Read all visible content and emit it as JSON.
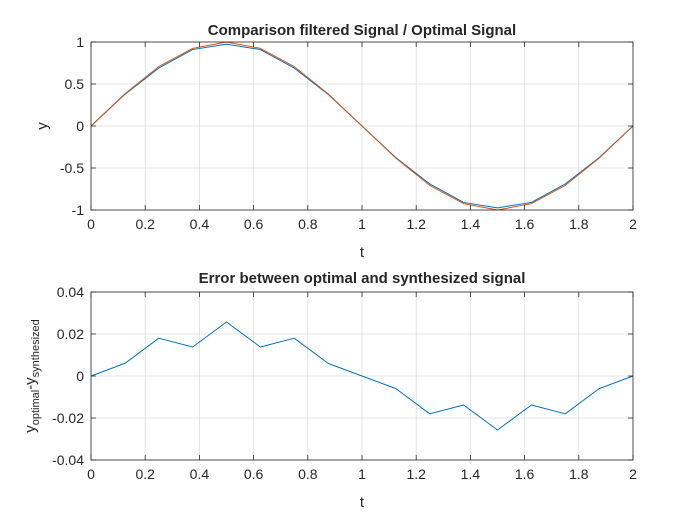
{
  "chart_data": [
    {
      "type": "line",
      "title": "Comparison filtered Signal / Optimal Signal",
      "xlabel": "t",
      "ylabel": "y",
      "xlim": [
        0,
        2
      ],
      "ylim": [
        -1,
        1
      ],
      "xticks": [
        0,
        0.2,
        0.4,
        0.6,
        0.8,
        1,
        1.2,
        1.4,
        1.6,
        1.8,
        2
      ],
      "xtick_labels": [
        "0",
        "0.2",
        "0.4",
        "0.6",
        "0.8",
        "1",
        "1.2",
        "1.4",
        "1.6",
        "1.8",
        "2"
      ],
      "yticks": [
        -1,
        -0.5,
        0,
        0.5,
        1
      ],
      "ytick_labels": [
        "-1",
        "-0.5",
        "0",
        "0.5",
        "1"
      ],
      "grid": true,
      "x": [
        0,
        0.125,
        0.25,
        0.375,
        0.5,
        0.625,
        0.75,
        0.875,
        1,
        1.125,
        1.25,
        1.375,
        1.5,
        1.625,
        1.75,
        1.875,
        2
      ],
      "series": [
        {
          "color": "#0072BD",
          "values": [
            0,
            0.377,
            0.689,
            0.91,
            0.974,
            0.91,
            0.689,
            0.377,
            0,
            -0.377,
            -0.689,
            -0.91,
            -0.974,
            -0.91,
            -0.689,
            -0.377,
            0
          ]
        },
        {
          "color": "#D95319",
          "values": [
            0,
            0.383,
            0.707,
            0.924,
            1.0,
            0.924,
            0.707,
            0.383,
            0,
            -0.383,
            -0.707,
            -0.924,
            -1.0,
            -0.924,
            -0.707,
            -0.383,
            0
          ]
        }
      ]
    },
    {
      "type": "line",
      "title": "Error between optimal and synthesized signal",
      "xlabel": "t",
      "ylabel": "y_optimal - y_synthesized",
      "ylabel_main1": "y",
      "ylabel_sub1": "optimal",
      "ylabel_sep": "-y",
      "ylabel_sub2": "synthesized",
      "xlim": [
        0,
        2
      ],
      "ylim": [
        -0.04,
        0.04
      ],
      "xticks": [
        0,
        0.2,
        0.4,
        0.6,
        0.8,
        1,
        1.2,
        1.4,
        1.6,
        1.8,
        2
      ],
      "xtick_labels": [
        "0",
        "0.2",
        "0.4",
        "0.6",
        "0.8",
        "1",
        "1.2",
        "1.4",
        "1.6",
        "1.8",
        "2"
      ],
      "yticks": [
        -0.04,
        -0.02,
        0,
        0.02,
        0.04
      ],
      "ytick_labels": [
        "-0.04",
        "-0.02",
        "0",
        "0.02",
        "0.04"
      ],
      "grid": true,
      "x": [
        0,
        0.125,
        0.25,
        0.375,
        0.5,
        0.625,
        0.75,
        0.875,
        1,
        1.125,
        1.25,
        1.375,
        1.5,
        1.625,
        1.75,
        1.875,
        2
      ],
      "series": [
        {
          "color": "#0072BD",
          "values": [
            0,
            0.006,
            0.018,
            0.0138,
            0.0257,
            0.0138,
            0.018,
            0.006,
            0,
            -0.006,
            -0.018,
            -0.0138,
            -0.0257,
            -0.0138,
            -0.018,
            -0.006,
            0
          ]
        }
      ]
    }
  ]
}
